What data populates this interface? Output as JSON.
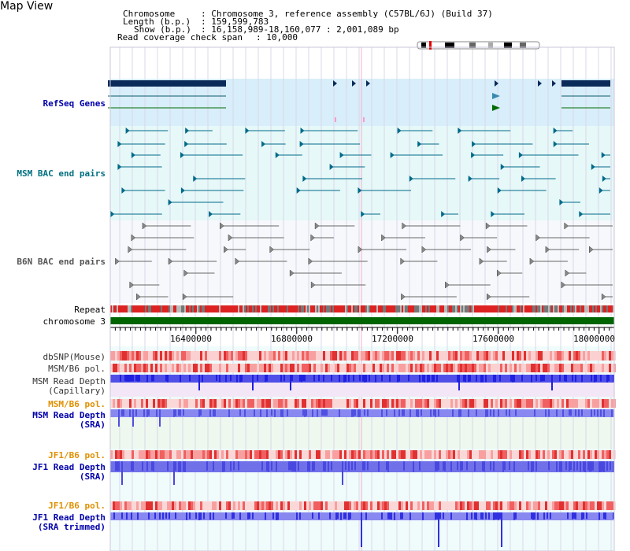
{
  "title": "Map View",
  "info": {
    "chromosome_key": "Chromosome",
    "chromosome_val": ": Chromosome 3, reference assembly (C57BL/6J) (Build 37)",
    "length_key": "Length (b.p.)",
    "length_val": ": 159,599,783",
    "show_key": "Show (b.p.)",
    "show_val": ": 16,158,989-18,160,077 : 2,001,089 bp",
    "coverage_key": "Read coverage check span",
    "coverage_val": ": 10,000"
  },
  "tracks": {
    "refseq": "RefSeq Genes",
    "msm_bac": "MSM BAC end pairs",
    "b6n_bac": "B6N BAC end pairs",
    "repeat": "Repeat",
    "chromosome": "chromosome 3",
    "dbsnp": "dbSNP(Mouse)",
    "msm_b6_pol_1": "MSM/B6 pol.",
    "msm_depth_cap_1": "MSM Read Depth",
    "msm_depth_cap_2": "(Capillary)",
    "msm_b6_pol_2": "MSM/B6 pol.",
    "msm_depth_sra_1": "MSM Read Depth",
    "msm_depth_sra_2": "(SRA)",
    "jf1_b6_pol_1": "JF1/B6 pol.",
    "jf1_depth_sra_1": "JF1 Read Depth",
    "jf1_depth_sra_2": "(SRA)",
    "jf1_b6_pol_2": "JF1/B6 pol.",
    "jf1_depth_trim_1": "JF1 Read Depth",
    "jf1_depth_trim_2": "(SRA trimmed)"
  },
  "axis": {
    "ticks": [
      "16400000",
      "16800000",
      "17200000",
      "17600000",
      "18000000"
    ]
  },
  "colors": {
    "gene": "#0a2a5a",
    "refseq_bg": "#d8eefa",
    "msm_bg": "#e6f8f8",
    "msm_bac": "#006a8a",
    "b6n_bac": "#555555",
    "repeat_red": "#dd2222",
    "chromosome": "#006400",
    "depth_blue": "#2020e0",
    "depth_light": "#8888f0",
    "label_blue": "#0000aa",
    "label_teal": "#007080",
    "label_orange": "#e09000"
  }
}
